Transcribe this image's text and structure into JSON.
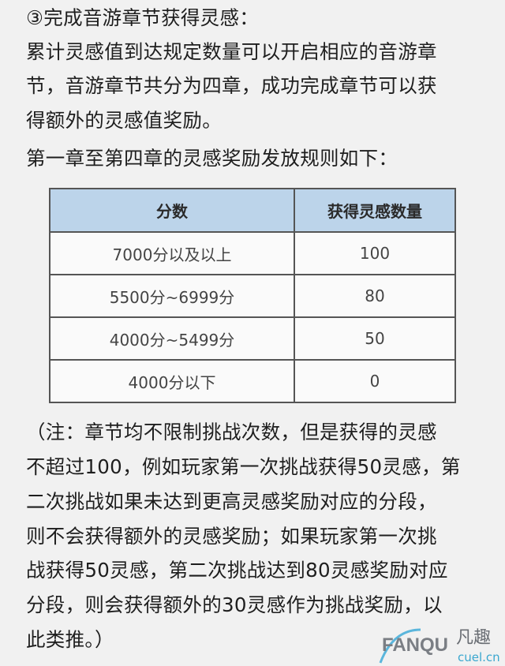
{
  "intro_lines": [
    "③完成音游章节获得灵感：",
    "累计灵感值到达规定数量可以开启相应的音游章",
    "节，音游章节共分为四章，成功完成章节可以获",
    "得额外的灵感值奖励。",
    "第一章至第四章的灵感奖励发放规则如下："
  ],
  "table": {
    "headers": [
      "分数",
      "获得灵感数量"
    ],
    "rows": [
      [
        "7000分以及以上",
        "100"
      ],
      [
        "5500分~6999分",
        "80"
      ],
      [
        "4000分~5499分",
        "50"
      ],
      [
        "4000分以下",
        "0"
      ]
    ],
    "header_color": "#bcd4ea"
  },
  "note_lines": [
    "（注：章节均不限制挑战次数，但是获得的灵感",
    "不超过100，例如玩家第一次挑战获得50灵感，第",
    "二次挑战如果未达到更高灵感奖励对应的分段，",
    "则不会获得额外的灵感奖励；如果玩家第一次挑",
    "战获得50灵感，第二次挑战达到80灵感奖励对应",
    "分段，则会获得额外的30灵感作为挑战奖励，以",
    "此类推。）"
  ],
  "watermark": {
    "brand": "FANQU",
    "brand_cn": "凡趣",
    "domain": "cuel.cn"
  }
}
